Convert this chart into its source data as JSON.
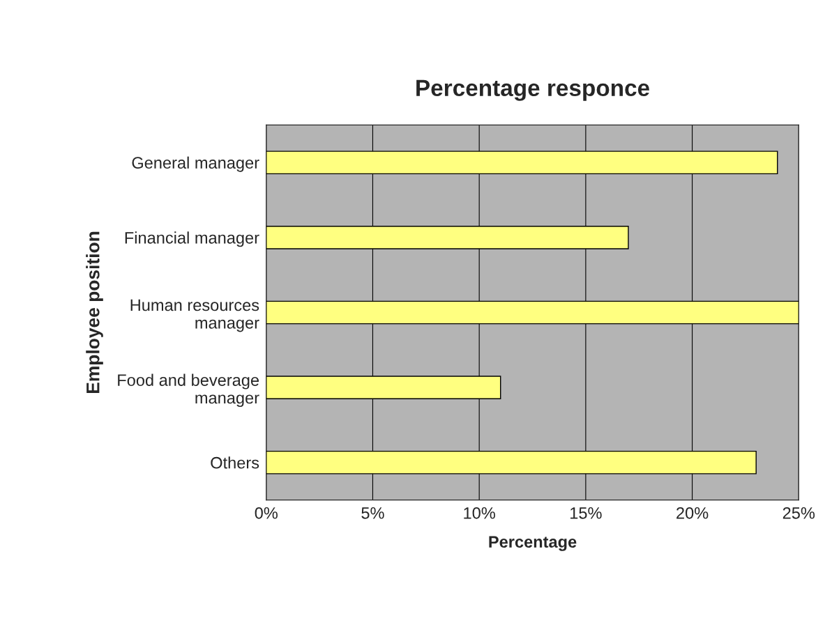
{
  "chart_data": {
    "type": "bar",
    "orientation": "horizontal",
    "title": "Percentage responce",
    "xlabel": "Percentage",
    "ylabel": "Employee position",
    "categories": [
      "General manager",
      "Financial manager",
      "Human resources\nmanager",
      "Food and beverage\nmanager",
      "Others"
    ],
    "values": [
      24,
      17,
      25,
      11,
      23
    ],
    "color": "#ffff80",
    "xlim": [
      0,
      25
    ],
    "xticks": [
      {
        "value": 0,
        "label": "0%"
      },
      {
        "value": 5,
        "label": "5%"
      },
      {
        "value": 10,
        "label": "10%"
      },
      {
        "value": 15,
        "label": "15%"
      },
      {
        "value": 20,
        "label": "20%"
      },
      {
        "value": 25,
        "label": "25%"
      }
    ],
    "grid": "x",
    "legend": false
  }
}
